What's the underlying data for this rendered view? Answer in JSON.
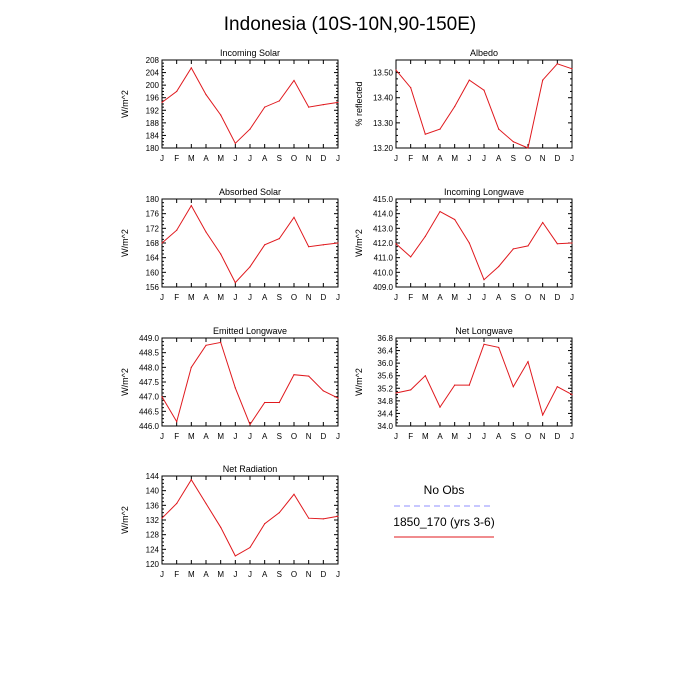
{
  "page": {
    "title": "Indonesia (10S-10N,90-150E)"
  },
  "colors": {
    "model_line": "#e0191e",
    "obs_line": "#8f8fff",
    "axis": "#000000"
  },
  "legend": {
    "entries": [
      {
        "label": "No Obs",
        "style": "dashed",
        "color": "#8f8fff"
      },
      {
        "label": "1850_170 (yrs 3-6)",
        "style": "solid",
        "color": "#e0191e"
      }
    ]
  },
  "months": [
    "J",
    "F",
    "M",
    "A",
    "M",
    "J",
    "J",
    "A",
    "S",
    "O",
    "N",
    "D",
    "J"
  ],
  "chart_data": [
    {
      "type": "line",
      "title": "Incoming Solar",
      "ylabel": "W/m^2",
      "xlabel": "",
      "ylim": [
        180,
        208
      ],
      "yticks": [
        "180",
        "184",
        "188",
        "192",
        "196",
        "200",
        "204",
        "208"
      ],
      "yticks_values": [
        180,
        184,
        188,
        192,
        196,
        200,
        204,
        208
      ],
      "series": [
        {
          "name": "1850_170 (yrs 3-6)",
          "values": [
            194.5,
            198.0,
            205.5,
            197.0,
            190.5,
            181.5,
            186.0,
            193.0,
            195.0,
            201.5,
            193.0,
            193.8,
            194.5
          ]
        }
      ]
    },
    {
      "type": "line",
      "title": "Albedo",
      "ylabel": "% reflected",
      "xlabel": "",
      "ylim": [
        13.2,
        13.55
      ],
      "yticks": [
        "13.20",
        "13.30",
        "13.40",
        "13.50"
      ],
      "yticks_values": [
        13.2,
        13.3,
        13.4,
        13.5
      ],
      "series": [
        {
          "name": "1850_170 (yrs 3-6)",
          "values": [
            13.51,
            13.44,
            13.255,
            13.275,
            13.365,
            13.47,
            13.43,
            13.275,
            13.225,
            13.2,
            13.47,
            13.535,
            13.515
          ]
        }
      ]
    },
    {
      "type": "line",
      "title": "Absorbed Solar",
      "ylabel": "W/m^2",
      "xlabel": "",
      "ylim": [
        156,
        180
      ],
      "yticks": [
        "156",
        "160",
        "164",
        "168",
        "172",
        "176",
        "180"
      ],
      "yticks_values": [
        156,
        160,
        164,
        168,
        172,
        176,
        180
      ],
      "series": [
        {
          "name": "1850_170 (yrs 3-6)",
          "values": [
            168.0,
            171.5,
            178.2,
            171.0,
            165.0,
            157.2,
            161.5,
            167.5,
            169.2,
            175.0,
            167.0,
            167.5,
            168.0
          ]
        }
      ]
    },
    {
      "type": "line",
      "title": "Incoming Longwave",
      "ylabel": "W/m^2",
      "xlabel": "",
      "ylim": [
        409.0,
        415.0
      ],
      "yticks": [
        "409.0",
        "410.0",
        "411.0",
        "412.0",
        "413.0",
        "414.0",
        "415.0"
      ],
      "yticks_values": [
        409,
        410,
        411,
        412,
        413,
        414,
        415
      ],
      "series": [
        {
          "name": "1850_170 (yrs 3-6)",
          "values": [
            411.95,
            411.05,
            412.45,
            414.15,
            413.6,
            412.0,
            409.5,
            410.4,
            411.6,
            411.8,
            413.4,
            411.95,
            412.0
          ]
        }
      ]
    },
    {
      "type": "line",
      "title": "Emitted Longwave",
      "ylabel": "W/m^2",
      "xlabel": "",
      "ylim": [
        446.0,
        449.0
      ],
      "yticks": [
        "446.0",
        "446.5",
        "447.0",
        "447.5",
        "448.0",
        "448.5",
        "449.0"
      ],
      "yticks_values": [
        446,
        446.5,
        447,
        447.5,
        448,
        448.5,
        449
      ],
      "series": [
        {
          "name": "1850_170 (yrs 3-6)",
          "values": [
            447.0,
            446.15,
            448.0,
            448.75,
            448.85,
            447.3,
            446.05,
            446.8,
            446.8,
            447.75,
            447.7,
            447.2,
            446.95
          ]
        }
      ]
    },
    {
      "type": "line",
      "title": "Net Longwave",
      "ylabel": "W/m^2",
      "xlabel": "",
      "ylim": [
        34.0,
        36.8
      ],
      "yticks": [
        "34.0",
        "34.4",
        "34.8",
        "35.2",
        "35.6",
        "36.0",
        "36.4",
        "36.8"
      ],
      "yticks_values": [
        34,
        34.4,
        34.8,
        35.2,
        35.6,
        36,
        36.4,
        36.8
      ],
      "series": [
        {
          "name": "1850_170 (yrs 3-6)",
          "values": [
            35.05,
            35.15,
            35.6,
            34.6,
            35.3,
            35.3,
            36.6,
            36.5,
            35.25,
            36.05,
            34.35,
            35.25,
            35.0
          ]
        }
      ]
    },
    {
      "type": "line",
      "title": "Net Radiation",
      "ylabel": "W/m^2",
      "xlabel": "",
      "ylim": [
        120,
        144
      ],
      "yticks": [
        "120",
        "124",
        "128",
        "132",
        "136",
        "140",
        "144"
      ],
      "yticks_values": [
        120,
        124,
        128,
        132,
        136,
        140,
        144
      ],
      "series": [
        {
          "name": "1850_170 (yrs 3-6)",
          "values": [
            132.5,
            136.5,
            143.0,
            136.5,
            130.0,
            122.2,
            124.5,
            131.0,
            134.0,
            139.0,
            132.5,
            132.3,
            133.0
          ]
        }
      ]
    }
  ]
}
